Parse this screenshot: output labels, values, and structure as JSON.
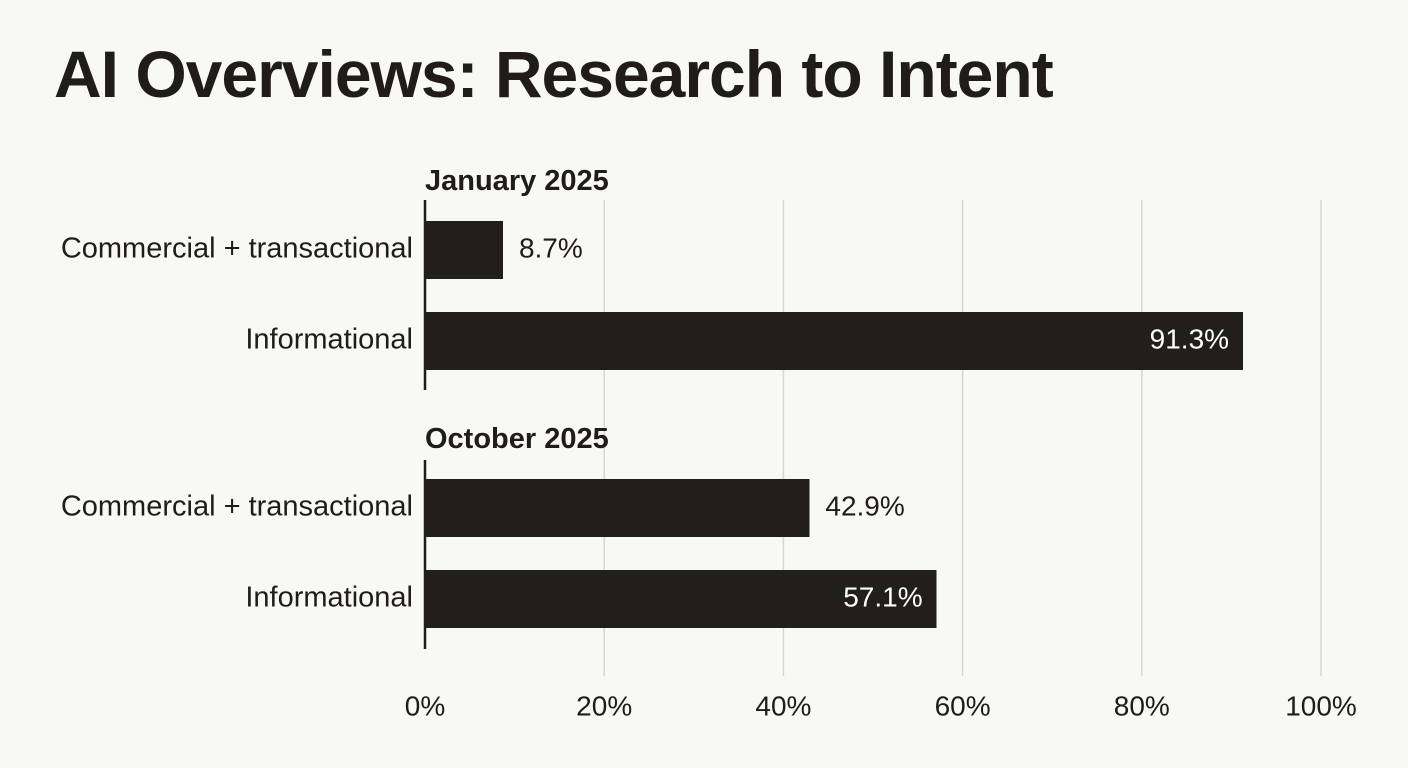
{
  "title": "AI Overviews: Research to Intent",
  "colors": {
    "background": "#f8f8f7",
    "bar": "#221e1c",
    "text": "#1f1c1a",
    "gridline": "#d8d6d3",
    "label_inside": "#ffffff"
  },
  "chart_data": {
    "type": "bar",
    "orientation": "horizontal",
    "title": "AI Overviews: Research to Intent",
    "xlim": [
      0,
      100
    ],
    "x_ticks": [
      0,
      20,
      40,
      60,
      80,
      100
    ],
    "x_tick_labels": [
      "0%",
      "20%",
      "40%",
      "60%",
      "80%",
      "100%"
    ],
    "grid": true,
    "panels": [
      {
        "title": "January 2025",
        "categories": [
          "Commercial + transactional",
          "Informational"
        ],
        "values": [
          8.7,
          91.3
        ],
        "value_labels": [
          "8.7%",
          "91.3%"
        ]
      },
      {
        "title": "October 2025",
        "categories": [
          "Commercial + transactional",
          "Informational"
        ],
        "values": [
          42.9,
          57.1
        ],
        "value_labels": [
          "42.9%",
          "57.1%"
        ]
      }
    ]
  }
}
